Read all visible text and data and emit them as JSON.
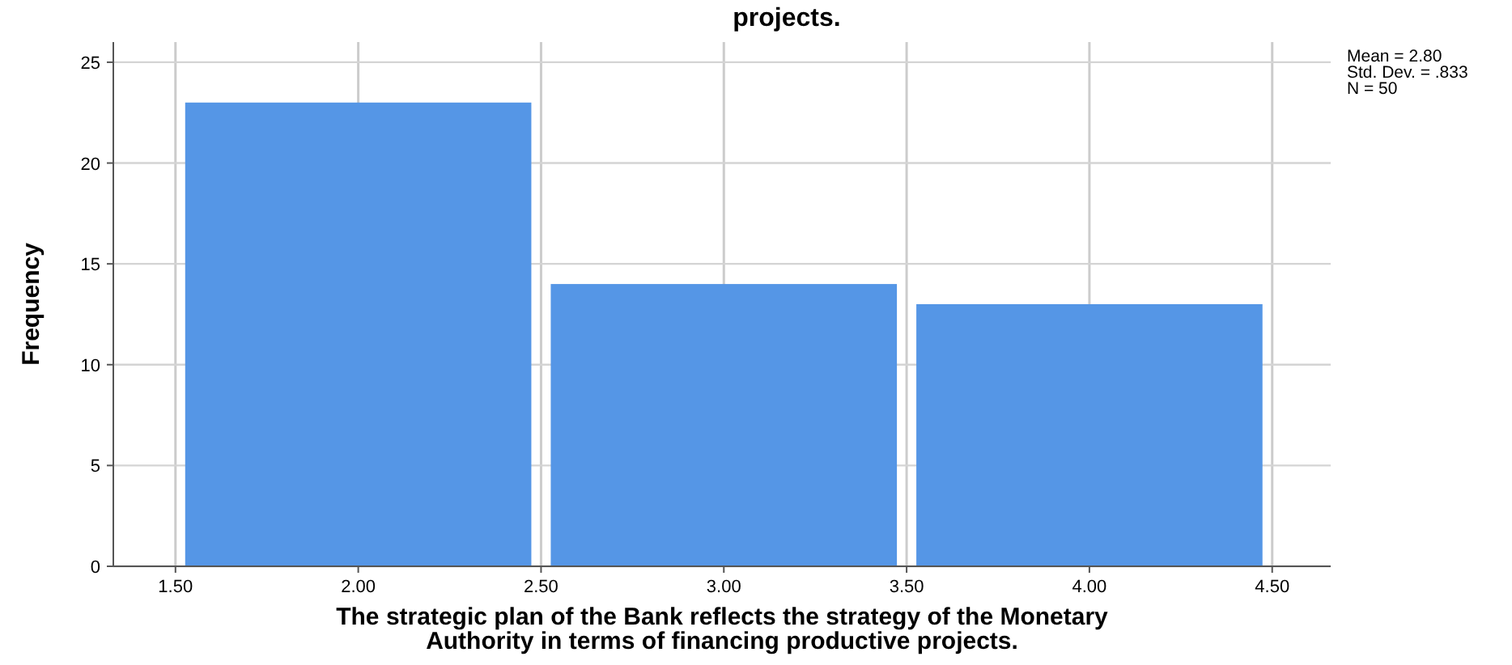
{
  "chart_data": {
    "type": "histogram",
    "title": "projects.",
    "xlabel": "The strategic plan of the Bank reflects the strategy of the Monetary Authority in terms of financing productive projects.",
    "ylabel": "Frequency",
    "bins": [
      1.5,
      2.5,
      3.5,
      4.5
    ],
    "values": [
      23,
      14,
      13
    ],
    "color": "#5596e6",
    "xlim": [
      1.33,
      4.66
    ],
    "xticks": [
      {
        "value": 1.5,
        "label": "1.50"
      },
      {
        "value": 2,
        "label": "2.00"
      },
      {
        "value": 2.5,
        "label": "2.50"
      },
      {
        "value": 3,
        "label": "3.00"
      },
      {
        "value": 3.5,
        "label": "3.50"
      },
      {
        "value": 4,
        "label": "4.00"
      },
      {
        "value": 4.5,
        "label": "4.50"
      }
    ],
    "ylim": [
      0,
      26
    ],
    "yticks": [
      0,
      5,
      10,
      15,
      20,
      25
    ],
    "grid": true,
    "annotations": [
      "Mean = 2.80",
      "Std. Dev. = .833",
      "N = 50"
    ]
  }
}
